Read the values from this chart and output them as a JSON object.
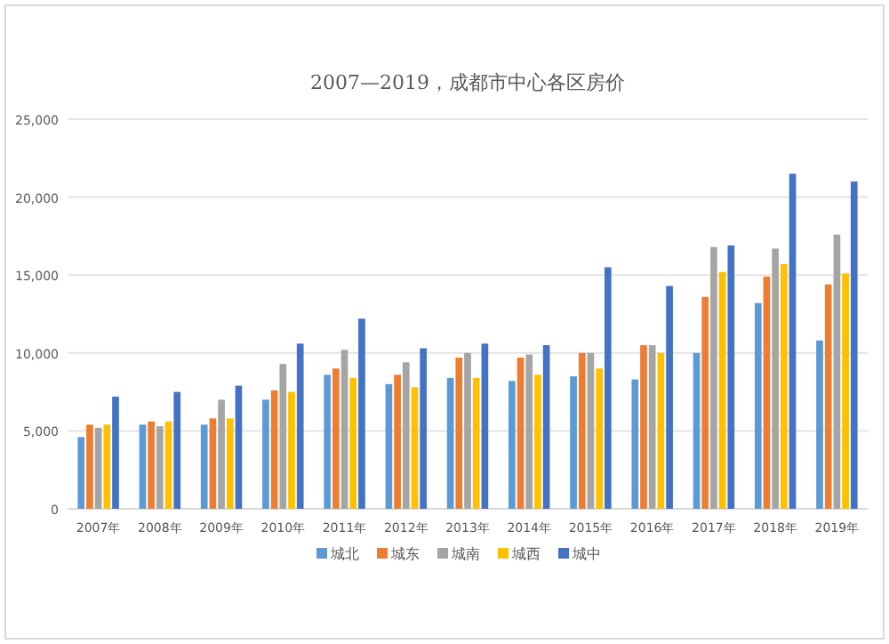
{
  "chart_data": {
    "type": "bar",
    "title": "2007—2019，成都市中心各区房价",
    "categories": [
      "2007年",
      "2008年",
      "2009年",
      "2010年",
      "2011年",
      "2012年",
      "2013年",
      "2014年",
      "2015年",
      "2016年",
      "2017年",
      "2018年",
      "2019年"
    ],
    "series": [
      {
        "name": "城北",
        "color": "#5b9bd5",
        "values": [
          4600,
          5400,
          5400,
          7000,
          8600,
          8000,
          8400,
          8200,
          8500,
          8300,
          10000,
          13200,
          10800
        ]
      },
      {
        "name": "城东",
        "color": "#ed7d31",
        "values": [
          5400,
          5600,
          5800,
          7600,
          9000,
          8600,
          9700,
          9700,
          10000,
          10500,
          13600,
          14900,
          14400
        ]
      },
      {
        "name": "城南",
        "color": "#a5a5a5",
        "values": [
          5200,
          5300,
          7000,
          9300,
          10200,
          9400,
          10000,
          9900,
          10000,
          10500,
          16800,
          16700,
          17600
        ]
      },
      {
        "name": "城西",
        "color": "#ffc000",
        "values": [
          5400,
          5600,
          5800,
          7500,
          8400,
          7800,
          8400,
          8600,
          9000,
          10000,
          15200,
          15700,
          15100
        ]
      },
      {
        "name": "城中",
        "color": "#4472c4",
        "values": [
          7200,
          7500,
          7900,
          10600,
          12200,
          10300,
          10600,
          10500,
          15500,
          14300,
          16900,
          21500,
          21000
        ]
      }
    ],
    "ylim": [
      0,
      25000
    ],
    "yticks": [
      {
        "value": 0,
        "label": "0"
      },
      {
        "value": 5000,
        "label": "5,000"
      },
      {
        "value": 10000,
        "label": "10,000"
      },
      {
        "value": 15000,
        "label": "15,000"
      },
      {
        "value": 20000,
        "label": "20,000"
      },
      {
        "value": 25000,
        "label": "25,000"
      }
    ],
    "grid": "y",
    "legend": "bottom"
  }
}
